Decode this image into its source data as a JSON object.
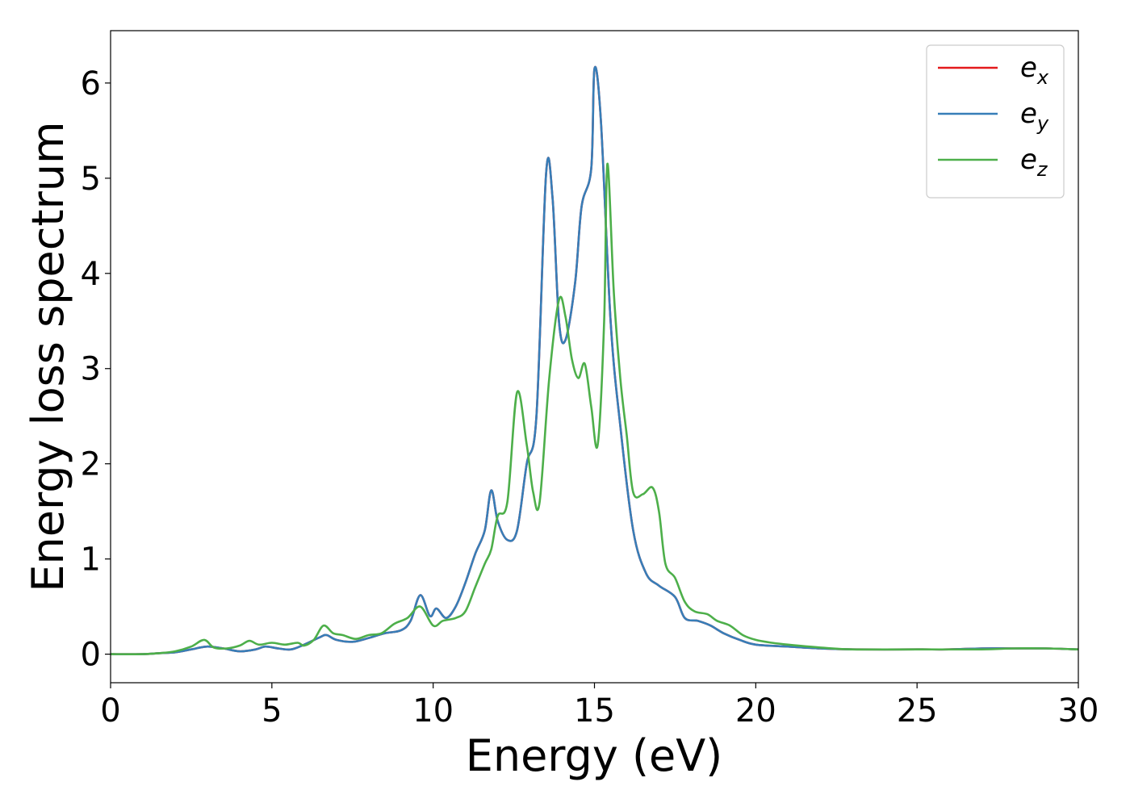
{
  "chart_data": {
    "type": "line",
    "title": "",
    "xlabel": "Energy (eV)",
    "ylabel": "Energy loss spectrum",
    "xlim": [
      0,
      30
    ],
    "ylim": [
      -0.3,
      6.55
    ],
    "xticks": [
      0,
      5,
      10,
      15,
      20,
      25,
      30
    ],
    "yticks": [
      0,
      1,
      2,
      3,
      4,
      5,
      6
    ],
    "grid": false,
    "legend_position": "top-right",
    "series": [
      {
        "name": "e",
        "subscript": "x",
        "color": "#e41a1c",
        "points": [
          [
            0,
            0
          ],
          [
            1,
            0
          ],
          [
            1.5,
            0.01
          ],
          [
            2,
            0.02
          ],
          [
            2.5,
            0.05
          ],
          [
            3,
            0.08
          ],
          [
            3.5,
            0.06
          ],
          [
            4,
            0.03
          ],
          [
            4.5,
            0.05
          ],
          [
            4.8,
            0.08
          ],
          [
            5.2,
            0.06
          ],
          [
            5.6,
            0.05
          ],
          [
            6,
            0.1
          ],
          [
            6.5,
            0.18
          ],
          [
            6.7,
            0.2
          ],
          [
            7,
            0.15
          ],
          [
            7.5,
            0.13
          ],
          [
            8,
            0.17
          ],
          [
            8.5,
            0.22
          ],
          [
            9,
            0.25
          ],
          [
            9.3,
            0.35
          ],
          [
            9.6,
            0.62
          ],
          [
            9.9,
            0.4
          ],
          [
            10.1,
            0.48
          ],
          [
            10.4,
            0.38
          ],
          [
            10.7,
            0.5
          ],
          [
            11,
            0.75
          ],
          [
            11.3,
            1.05
          ],
          [
            11.6,
            1.3
          ],
          [
            11.8,
            1.72
          ],
          [
            12,
            1.4
          ],
          [
            12.3,
            1.2
          ],
          [
            12.6,
            1.3
          ],
          [
            12.9,
            2.0
          ],
          [
            13.2,
            2.5
          ],
          [
            13.5,
            5.05
          ],
          [
            13.7,
            4.8
          ],
          [
            13.9,
            3.5
          ],
          [
            14.1,
            3.3
          ],
          [
            14.4,
            3.9
          ],
          [
            14.6,
            4.7
          ],
          [
            14.9,
            5.1
          ],
          [
            15.0,
            6.15
          ],
          [
            15.2,
            5.6
          ],
          [
            15.5,
            3.5
          ],
          [
            15.8,
            2.4
          ],
          [
            16.2,
            1.3
          ],
          [
            16.6,
            0.85
          ],
          [
            17.0,
            0.72
          ],
          [
            17.5,
            0.6
          ],
          [
            17.8,
            0.38
          ],
          [
            18.2,
            0.35
          ],
          [
            18.6,
            0.3
          ],
          [
            19.0,
            0.22
          ],
          [
            19.5,
            0.15
          ],
          [
            20,
            0.1
          ],
          [
            21,
            0.08
          ],
          [
            22,
            0.06
          ],
          [
            23,
            0.05
          ],
          [
            25,
            0.05
          ],
          [
            26,
            0.05
          ],
          [
            27,
            0.06
          ],
          [
            28,
            0.06
          ],
          [
            29,
            0.06
          ],
          [
            30,
            0.05
          ]
        ]
      },
      {
        "name": "e",
        "subscript": "y",
        "color": "#377eb8",
        "points": [
          [
            0,
            0
          ],
          [
            1,
            0
          ],
          [
            1.5,
            0.01
          ],
          [
            2,
            0.02
          ],
          [
            2.5,
            0.05
          ],
          [
            3,
            0.08
          ],
          [
            3.5,
            0.06
          ],
          [
            4,
            0.03
          ],
          [
            4.5,
            0.05
          ],
          [
            4.8,
            0.08
          ],
          [
            5.2,
            0.06
          ],
          [
            5.6,
            0.05
          ],
          [
            6,
            0.1
          ],
          [
            6.5,
            0.18
          ],
          [
            6.7,
            0.2
          ],
          [
            7,
            0.15
          ],
          [
            7.5,
            0.13
          ],
          [
            8,
            0.17
          ],
          [
            8.5,
            0.22
          ],
          [
            9,
            0.25
          ],
          [
            9.3,
            0.35
          ],
          [
            9.6,
            0.62
          ],
          [
            9.9,
            0.4
          ],
          [
            10.1,
            0.48
          ],
          [
            10.4,
            0.38
          ],
          [
            10.7,
            0.5
          ],
          [
            11,
            0.75
          ],
          [
            11.3,
            1.05
          ],
          [
            11.6,
            1.3
          ],
          [
            11.8,
            1.72
          ],
          [
            12,
            1.4
          ],
          [
            12.3,
            1.2
          ],
          [
            12.6,
            1.3
          ],
          [
            12.9,
            2.0
          ],
          [
            13.2,
            2.5
          ],
          [
            13.5,
            5.05
          ],
          [
            13.7,
            4.8
          ],
          [
            13.9,
            3.5
          ],
          [
            14.1,
            3.3
          ],
          [
            14.4,
            3.9
          ],
          [
            14.6,
            4.7
          ],
          [
            14.9,
            5.1
          ],
          [
            15.0,
            6.15
          ],
          [
            15.2,
            5.6
          ],
          [
            15.5,
            3.5
          ],
          [
            15.8,
            2.4
          ],
          [
            16.2,
            1.3
          ],
          [
            16.6,
            0.85
          ],
          [
            17.0,
            0.72
          ],
          [
            17.5,
            0.6
          ],
          [
            17.8,
            0.38
          ],
          [
            18.2,
            0.35
          ],
          [
            18.6,
            0.3
          ],
          [
            19.0,
            0.22
          ],
          [
            19.5,
            0.15
          ],
          [
            20,
            0.1
          ],
          [
            21,
            0.08
          ],
          [
            22,
            0.06
          ],
          [
            23,
            0.05
          ],
          [
            25,
            0.05
          ],
          [
            26,
            0.05
          ],
          [
            27,
            0.06
          ],
          [
            28,
            0.06
          ],
          [
            29,
            0.06
          ],
          [
            30,
            0.05
          ]
        ]
      },
      {
        "name": "e",
        "subscript": "z",
        "color": "#4daf4a",
        "points": [
          [
            0,
            0
          ],
          [
            1,
            0
          ],
          [
            1.5,
            0.01
          ],
          [
            2,
            0.03
          ],
          [
            2.5,
            0.08
          ],
          [
            2.9,
            0.15
          ],
          [
            3.2,
            0.07
          ],
          [
            3.6,
            0.06
          ],
          [
            4,
            0.09
          ],
          [
            4.3,
            0.14
          ],
          [
            4.6,
            0.1
          ],
          [
            5,
            0.12
          ],
          [
            5.4,
            0.1
          ],
          [
            5.8,
            0.12
          ],
          [
            6,
            0.09
          ],
          [
            6.3,
            0.15
          ],
          [
            6.6,
            0.3
          ],
          [
            6.9,
            0.22
          ],
          [
            7.2,
            0.2
          ],
          [
            7.6,
            0.16
          ],
          [
            8,
            0.2
          ],
          [
            8.4,
            0.22
          ],
          [
            8.8,
            0.32
          ],
          [
            9.2,
            0.38
          ],
          [
            9.6,
            0.5
          ],
          [
            10.0,
            0.3
          ],
          [
            10.3,
            0.35
          ],
          [
            10.7,
            0.38
          ],
          [
            11.0,
            0.45
          ],
          [
            11.3,
            0.7
          ],
          [
            11.6,
            0.95
          ],
          [
            11.8,
            1.1
          ],
          [
            12.0,
            1.45
          ],
          [
            12.3,
            1.6
          ],
          [
            12.6,
            2.75
          ],
          [
            12.9,
            2.2
          ],
          [
            13.1,
            1.7
          ],
          [
            13.3,
            1.6
          ],
          [
            13.6,
            2.9
          ],
          [
            13.9,
            3.72
          ],
          [
            14.1,
            3.55
          ],
          [
            14.3,
            3.1
          ],
          [
            14.5,
            2.9
          ],
          [
            14.7,
            3.05
          ],
          [
            14.9,
            2.6
          ],
          [
            15.1,
            2.2
          ],
          [
            15.3,
            3.5
          ],
          [
            15.4,
            5.15
          ],
          [
            15.6,
            3.8
          ],
          [
            15.8,
            2.9
          ],
          [
            16.0,
            2.3
          ],
          [
            16.2,
            1.7
          ],
          [
            16.5,
            1.68
          ],
          [
            16.8,
            1.75
          ],
          [
            17.0,
            1.5
          ],
          [
            17.2,
            0.95
          ],
          [
            17.5,
            0.8
          ],
          [
            17.8,
            0.55
          ],
          [
            18.1,
            0.45
          ],
          [
            18.5,
            0.42
          ],
          [
            18.8,
            0.35
          ],
          [
            19.2,
            0.3
          ],
          [
            19.6,
            0.2
          ],
          [
            20,
            0.15
          ],
          [
            20.5,
            0.12
          ],
          [
            21,
            0.1
          ],
          [
            22,
            0.07
          ],
          [
            23,
            0.05
          ],
          [
            25,
            0.05
          ],
          [
            27,
            0.05
          ],
          [
            28,
            0.06
          ],
          [
            29,
            0.06
          ],
          [
            30,
            0.05
          ]
        ]
      }
    ]
  }
}
